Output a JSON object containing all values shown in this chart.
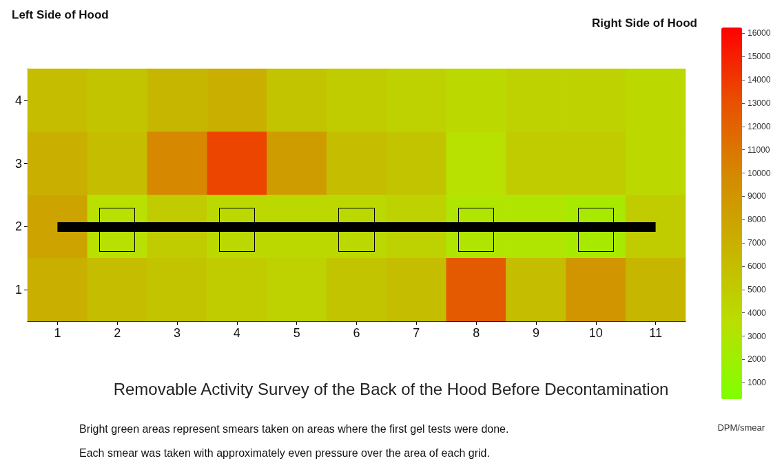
{
  "chart_data": {
    "type": "heatmap",
    "title": "Removable Activity Survey of the Back of the Hood Before Decontamination",
    "clabel": "DPM/smear",
    "annotations": [
      "Left Side of Hood",
      "Right Side of Hood",
      "Bright green areas represent smears taken on areas where the first gel tests were done.",
      "Each smear was taken with approximately even pressure over the area of each grid."
    ],
    "categories": [
      "1",
      "2",
      "3",
      "4",
      "5",
      "6",
      "7",
      "8",
      "9",
      "10",
      "11"
    ],
    "y_categories": [
      "4",
      "3",
      "2",
      "1"
    ],
    "cells": [
      [
        6000,
        5500,
        6500,
        7000,
        5500,
        5000,
        4500,
        4000,
        4500,
        4500,
        4000
      ],
      [
        7000,
        6000,
        10000,
        13500,
        8500,
        6000,
        5500,
        3500,
        5000,
        5000,
        4000
      ],
      [
        8000,
        3500,
        5000,
        4000,
        4000,
        4000,
        4500,
        3000,
        3000,
        2500,
        5000
      ],
      [
        7000,
        6000,
        5500,
        5000,
        4500,
        5500,
        6000,
        12500,
        6000,
        9000,
        6500
      ]
    ],
    "clim": [
      300,
      16250
    ],
    "cticks": [
      1000,
      2000,
      3000,
      4000,
      5000,
      6000,
      7000,
      8000,
      9000,
      10000,
      11000,
      12000,
      13000,
      14000,
      15000,
      16000
    ],
    "ref_lines": [
      {
        "axis": "y",
        "value": "2",
        "color": "#000000"
      }
    ]
  }
}
